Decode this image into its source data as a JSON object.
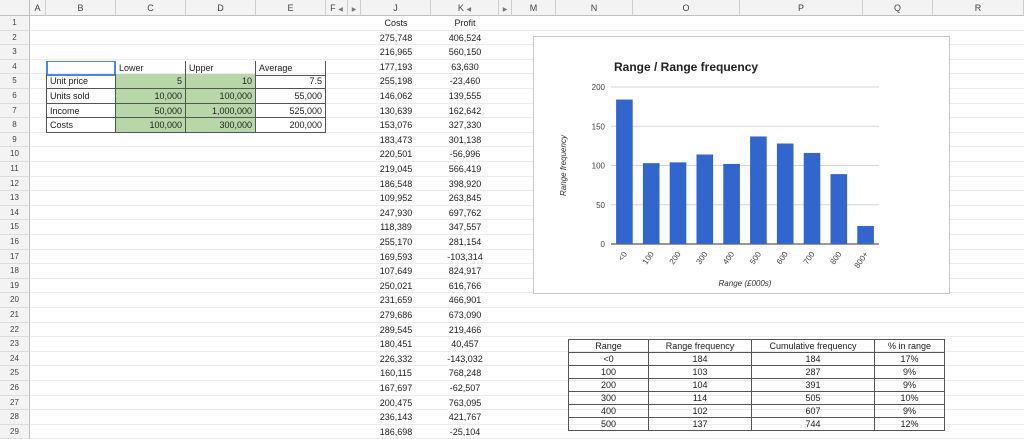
{
  "sheet": {
    "columns": [
      "A",
      "B",
      "C",
      "D",
      "E",
      "F",
      "",
      "J",
      "K",
      "",
      "M",
      "N",
      "O",
      "P",
      "Q",
      "R"
    ],
    "rows": [
      "1",
      "2",
      "3",
      "4",
      "5",
      "6",
      "7",
      "8",
      "9",
      "10",
      "11",
      "12",
      "13",
      "14",
      "15",
      "16",
      "17",
      "18",
      "19",
      "20",
      "21",
      "22",
      "23",
      "24",
      "25",
      "26",
      "27",
      "28",
      "29"
    ]
  },
  "inputs": {
    "headers": [
      "",
      "Lower",
      "Upper",
      "Average"
    ],
    "rows": [
      {
        "label": "Unit price",
        "lower": "5",
        "upper": "10",
        "average": "7.5"
      },
      {
        "label": "Units sold",
        "lower": "10,000",
        "upper": "100,000",
        "average": "55,000"
      },
      {
        "label": "Income",
        "lower": "50,000",
        "upper": "1,000,000",
        "average": "525,000"
      },
      {
        "label": "Costs",
        "lower": "100,000",
        "upper": "300,000",
        "average": "200,000"
      }
    ]
  },
  "sim": {
    "costs_header": "Costs",
    "profit_header": "Profit",
    "costs": [
      "275,748",
      "216,965",
      "177,193",
      "255,198",
      "146,062",
      "130,639",
      "153,076",
      "183,473",
      "220,501",
      "219,045",
      "186,548",
      "109,952",
      "247,930",
      "118,389",
      "255,170",
      "169,593",
      "107,649",
      "250,021",
      "231,659",
      "279,686",
      "289,545",
      "180,451",
      "226,332",
      "160,115",
      "167,697",
      "200,475",
      "236,143",
      "186,698"
    ],
    "profit": [
      "406,524",
      "560,150",
      "63,630",
      "-23,460",
      "139,555",
      "162,642",
      "327,330",
      "301,138",
      "-56,996",
      "566,419",
      "398,920",
      "263,845",
      "697,762",
      "347,557",
      "281,154",
      "-103,314",
      "824,917",
      "616,766",
      "466,901",
      "673,090",
      "219,466",
      "40,457",
      "-143,032",
      "768,248",
      "-62,507",
      "763,095",
      "421,767",
      "-25,104"
    ]
  },
  "freq_table": {
    "headers": [
      "Range",
      "Range frequency",
      "Cumulative frequency",
      "% in range"
    ],
    "rows": [
      [
        "<0",
        "184",
        "184",
        "17%"
      ],
      [
        "100",
        "103",
        "287",
        "9%"
      ],
      [
        "200",
        "104",
        "391",
        "9%"
      ],
      [
        "300",
        "114",
        "505",
        "10%"
      ],
      [
        "400",
        "102",
        "607",
        "9%"
      ],
      [
        "500",
        "137",
        "744",
        "12%"
      ]
    ]
  },
  "chart_data": {
    "type": "bar",
    "title": "Range / Range frequency",
    "xlabel": "Range (£000s)",
    "ylabel": "Range frequency",
    "categories": [
      "<0",
      "100",
      "200",
      "300",
      "400",
      "500",
      "600",
      "700",
      "800",
      "800+"
    ],
    "values": [
      184,
      103,
      104,
      114,
      102,
      137,
      128,
      116,
      89,
      23
    ],
    "ylim": [
      0,
      200
    ],
    "yticks": [
      0,
      50,
      100,
      150,
      200
    ],
    "grid": true,
    "bar_color": "#3366cc"
  }
}
